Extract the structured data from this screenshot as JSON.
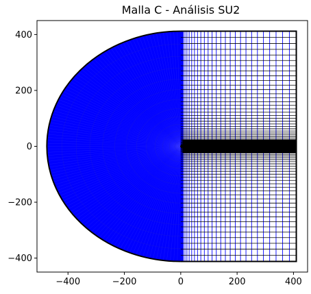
{
  "chart_data": {
    "type": "scatter",
    "title": "Malla C - Análisis SU2",
    "xlabel": "",
    "ylabel": "",
    "xlim": [
      -510,
      450
    ],
    "ylim": [
      -450,
      450
    ],
    "x_ticks": [
      -400,
      -200,
      0,
      200,
      400
    ],
    "y_ticks": [
      -400,
      -200,
      0,
      200,
      400
    ],
    "x_tick_labels": [
      "−400",
      "−200",
      "0",
      "200",
      "400"
    ],
    "y_tick_labels": [
      "−400",
      "−200",
      "0",
      "200",
      "400"
    ],
    "grid": false,
    "legend": "none",
    "mesh": {
      "semicircle_radius": 475,
      "domain_half_height": 412,
      "domain_x_max": 410,
      "airfoil_x": [
        0,
        1
      ],
      "n_radial_lines": 120,
      "n_vertical_grid_lines": 28,
      "n_horizontal_grid_lines": 40,
      "colors": {
        "mesh": "#0000ff",
        "boundary": "#000000",
        "wake": "#000000"
      }
    }
  }
}
